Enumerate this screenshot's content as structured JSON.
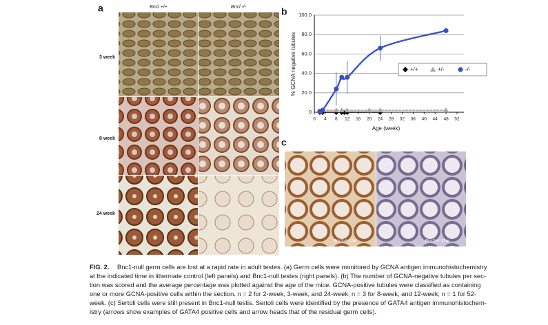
{
  "panel_a": {
    "letter": "a",
    "columns": [
      "Bncl +/+",
      "Bncl -/-"
    ],
    "rows": [
      "3 week",
      "8 week",
      "24 week"
    ]
  },
  "panel_b": {
    "letter": "b"
  },
  "chart_data": {
    "type": "scatter",
    "xlabel": "Age (week)",
    "ylabel": "% GCNA negative tubules",
    "xlim": [
      0,
      52
    ],
    "xticks": [
      0,
      4,
      8,
      12,
      16,
      20,
      24,
      28,
      32,
      36,
      40,
      44,
      48,
      52
    ],
    "ylim": [
      0,
      100
    ],
    "yticks": [
      0,
      {
        "value": 20,
        "label": "20.0"
      },
      {
        "value": 40,
        "label": "40.0"
      },
      {
        "value": 60,
        "label": "60.0"
      },
      {
        "value": 80,
        "label": "80.0"
      },
      {
        "value": 100,
        "label": "100.0"
      }
    ],
    "grid": true,
    "series": [
      {
        "name": "+/+",
        "color": "#000000",
        "marker": "diamond",
        "line_style": "solid",
        "x": [
          2,
          3,
          8,
          10,
          11,
          12,
          24
        ],
        "values": [
          0,
          0,
          0,
          0,
          0,
          0,
          0
        ]
      },
      {
        "name": "+/-",
        "color": "#a6a6a6",
        "marker": "triangle",
        "line_style": "dashed",
        "x": [
          2,
          3,
          8,
          10,
          12,
          20,
          24,
          48
        ],
        "values": [
          1,
          2,
          2,
          2,
          2,
          2,
          2,
          2
        ]
      },
      {
        "name": "-/-",
        "color": "#3b4fc4",
        "marker": "circle",
        "line_style": "dotted",
        "x": [
          2,
          3,
          8,
          10,
          12,
          24,
          48
        ],
        "values": [
          1,
          2,
          24,
          36,
          36,
          66,
          84
        ],
        "errors": [
          null,
          null,
          17,
          null,
          17,
          13,
          null
        ]
      }
    ]
  },
  "panel_c": {
    "letter": "c",
    "labels": [
      "Bnc1-/-12w",
      "Bnc1+/-12w"
    ]
  },
  "caption": {
    "label": "FIG. 2.",
    "lines": [
      "Bnc1-null germ cells are lost at a rapid rate in adult testes. (a) Germ cells were monitored by GCNA antigen immunohistochemistry",
      "at the indicated time in littermate control (left panels) and Bnc1-null testes (right panels). (b) The number of GCNA-negative tubules per sec-",
      "tion was scored and the average percentage was plotted against the age of the mice. GCNA-positive tubules were classified as containing",
      "one or more GCNA-positive cells within the section. n = 2 for 2-week, 3-week, and 24-week; n = 3 for 8-week, and 12-week; n = 1 for 52-",
      "week. (c) Sertoli cells were still present in Bnc1-null testis. Sertoli cells were identified by the presence of GATA4 antigen immunohistochem-",
      "istry (arrows show examples of GATA4 positive cells and arrow heads that of the residual germ cells)."
    ]
  }
}
